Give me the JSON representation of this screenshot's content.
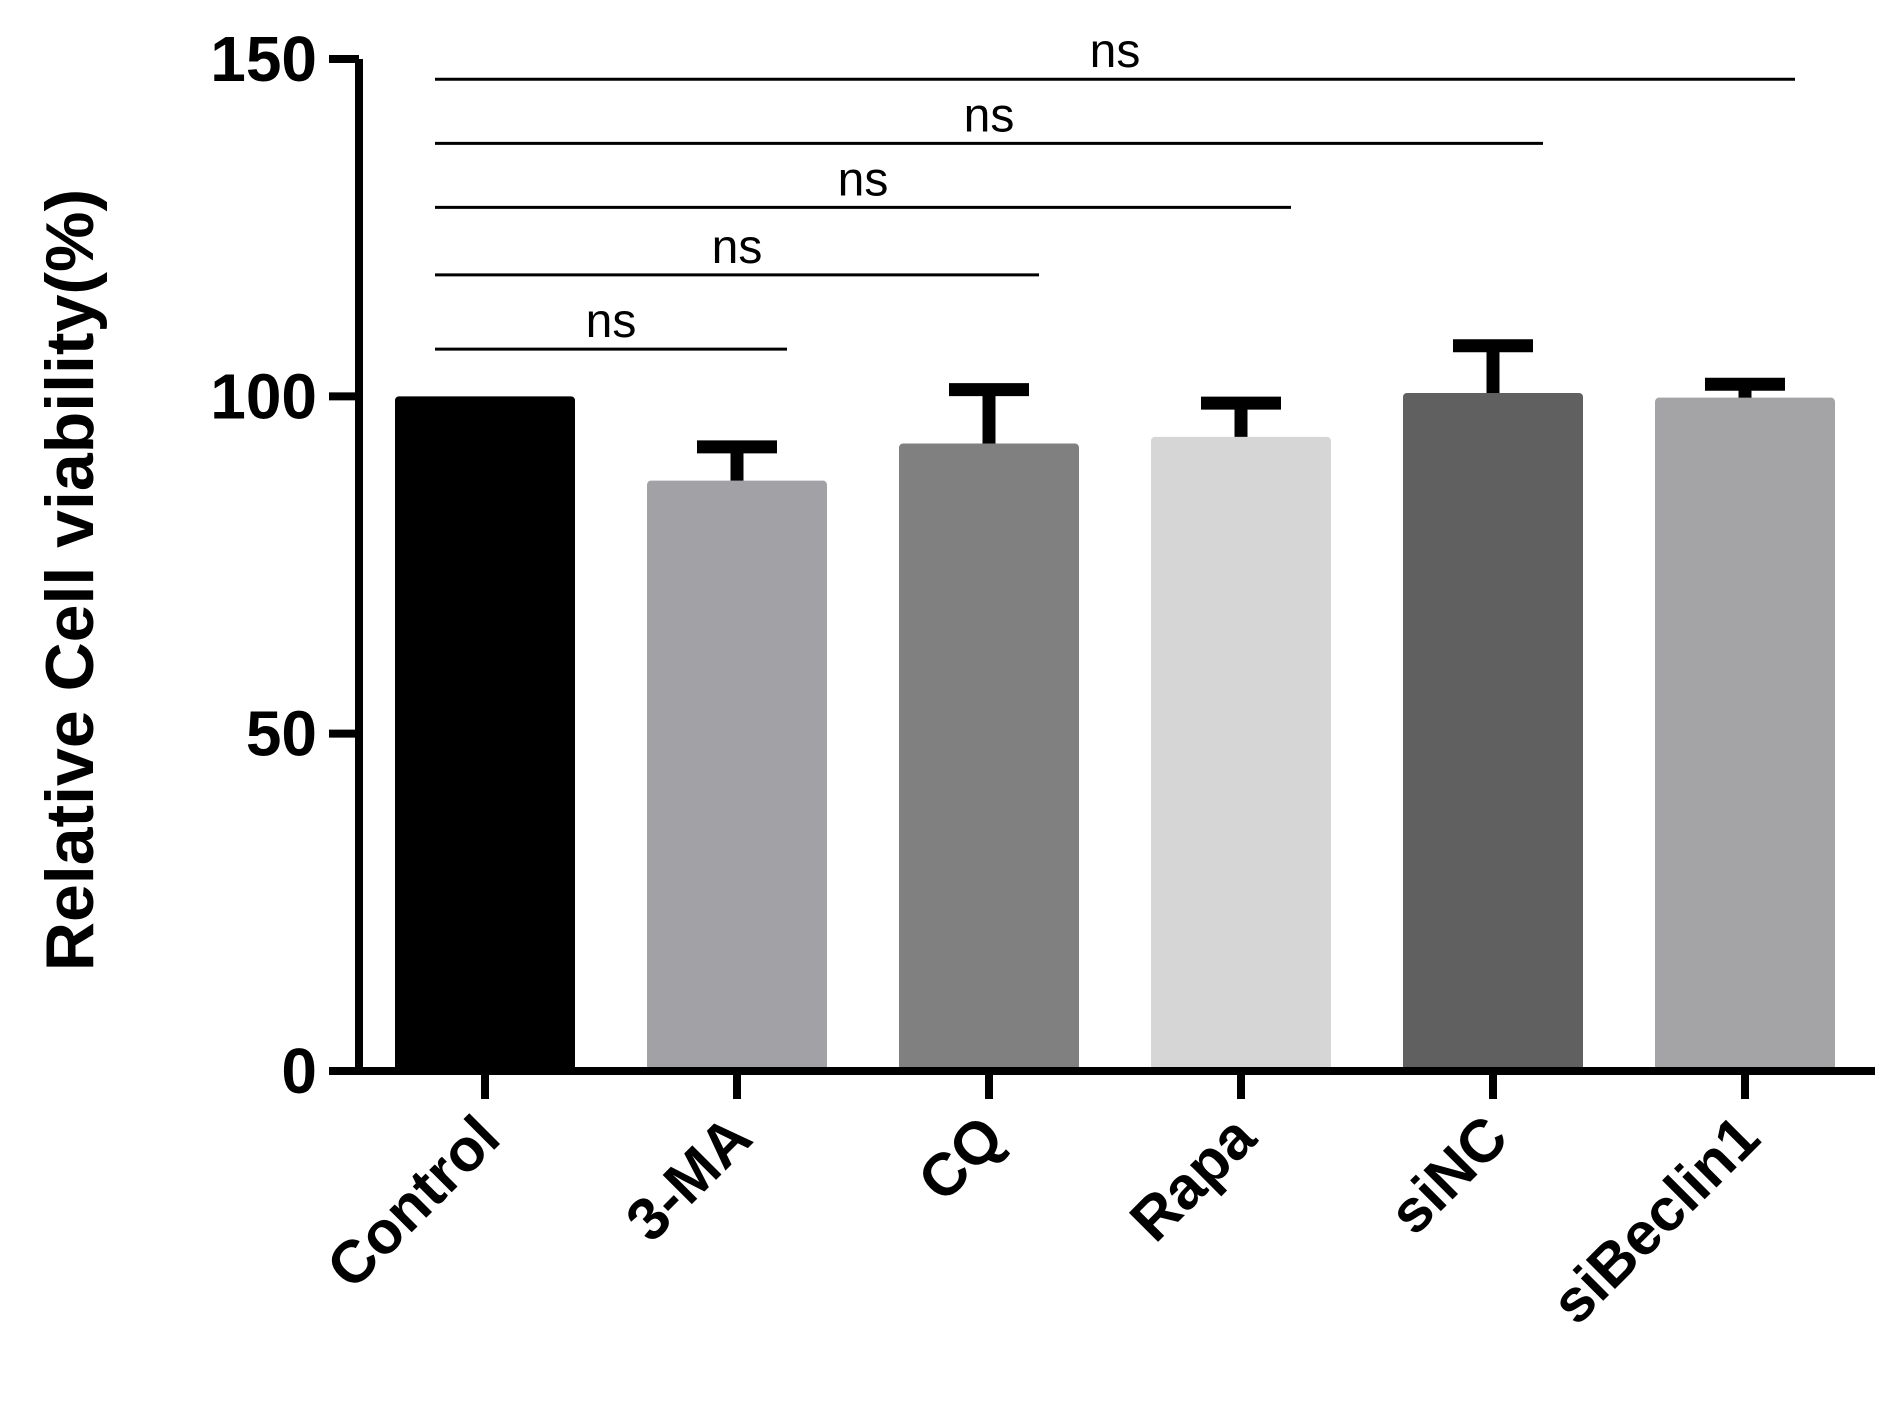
{
  "chart_data": {
    "type": "bar",
    "title": "",
    "xlabel": "",
    "ylabel": "Relative Cell viability(%)",
    "ylim": [
      0,
      150
    ],
    "yticks": [
      0,
      50,
      100,
      150
    ],
    "grid": false,
    "legend": "none",
    "categories": [
      "Control",
      "3-MA",
      "CQ",
      "Rapa",
      "siNC",
      "siBeclin1"
    ],
    "values": [
      100,
      87.5,
      93,
      94,
      100.5,
      99.8
    ],
    "errors": [
      0,
      5,
      8,
      5,
      7,
      2
    ],
    "colors": [
      "#000000",
      "#a2a2a6",
      "#808080",
      "#d6d6d6",
      "#606060",
      "#a4a4a6"
    ],
    "significance": [
      {
        "from": "Control",
        "to": "3-MA",
        "label": "ns",
        "y": 107
      },
      {
        "from": "Control",
        "to": "CQ",
        "label": "ns",
        "y": 118
      },
      {
        "from": "Control",
        "to": "Rapa",
        "label": "ns",
        "y": 128
      },
      {
        "from": "Control",
        "to": "siNC",
        "label": "ns",
        "y": 137.5
      },
      {
        "from": "Control",
        "to": "siBeclin1",
        "label": "ns",
        "y": 147
      }
    ]
  }
}
